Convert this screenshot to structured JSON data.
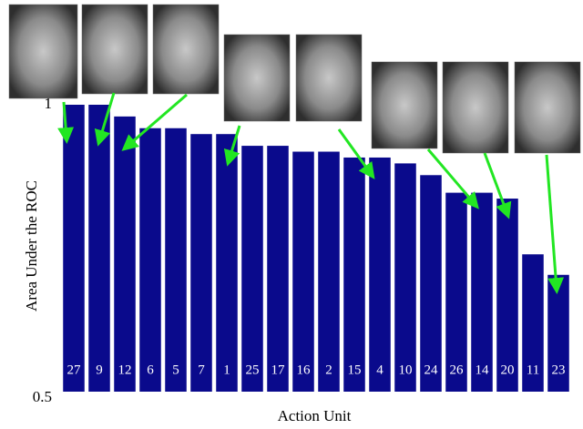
{
  "chart_data": {
    "type": "bar",
    "x_label": "Action Unit",
    "y_label": "Area Under the ROC",
    "categories": [
      "27",
      "9",
      "12",
      "6",
      "5",
      "7",
      "1",
      "25",
      "17",
      "16",
      "2",
      "15",
      "4",
      "10",
      "24",
      "26",
      "14",
      "20",
      "11",
      "23"
    ],
    "values": [
      1.0,
      1.0,
      0.98,
      0.96,
      0.96,
      0.95,
      0.95,
      0.93,
      0.93,
      0.92,
      0.92,
      0.91,
      0.91,
      0.9,
      0.88,
      0.85,
      0.85,
      0.84,
      0.745,
      0.71
    ],
    "color": "#0a0a8c",
    "ylim": [
      0.5,
      1
    ],
    "yticks": [
      0.5,
      1
    ]
  }
}
